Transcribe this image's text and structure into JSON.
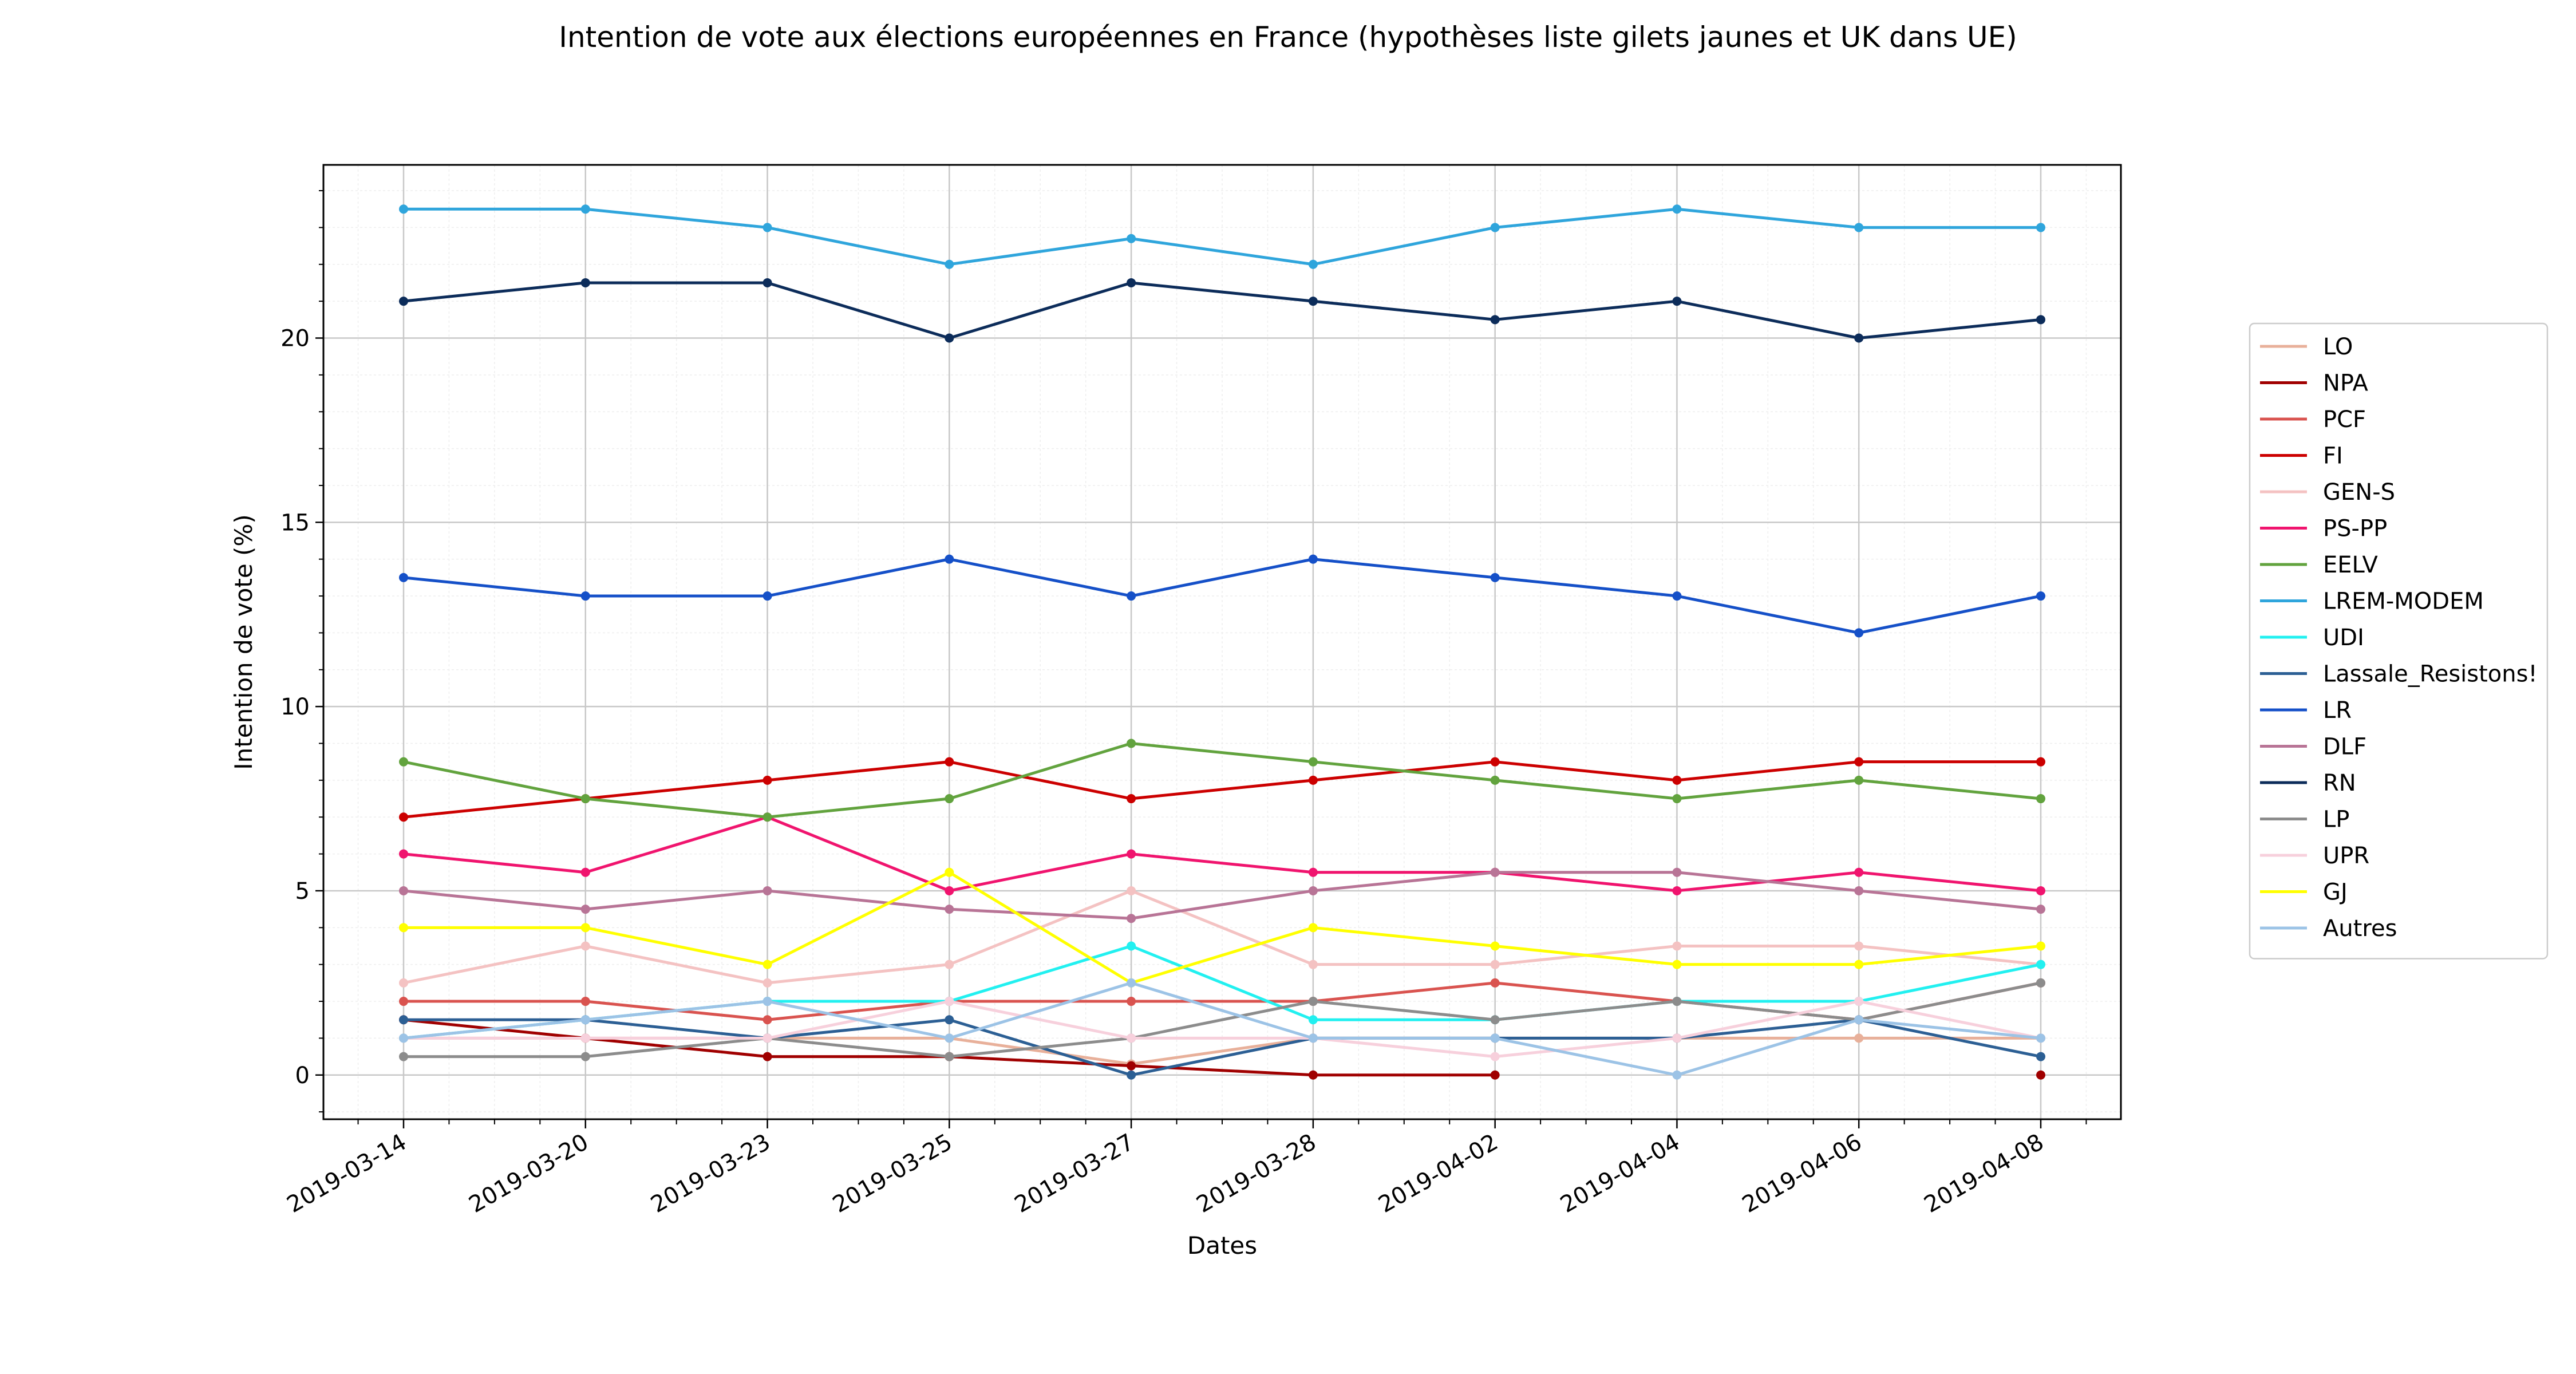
{
  "chart_data": {
    "type": "line",
    "title": "Intention de vote aux élections européennes en France (hypothèses liste gilets jaunes et UK dans UE)",
    "xlabel": "Dates",
    "ylabel": "Intention de vote (%)",
    "x": [
      "2019-03-14",
      "2019-03-20",
      "2019-03-23",
      "2019-03-25",
      "2019-03-27",
      "2019-03-28",
      "2019-04-02",
      "2019-04-04",
      "2019-04-06",
      "2019-04-08"
    ],
    "yticks": [
      0,
      5,
      10,
      15,
      20
    ],
    "ylim": [
      -1.2,
      24.7
    ],
    "grid": true,
    "legend_position": "right",
    "series": [
      {
        "name": "LO",
        "color": "#e8b09a",
        "values": [
          1,
          1,
          1,
          1,
          0.3,
          1,
          1,
          1,
          1,
          1
        ]
      },
      {
        "name": "NPA",
        "color": "#a00000",
        "values": [
          1.5,
          1,
          0.5,
          0.5,
          0.25,
          0,
          0,
          null,
          null,
          0
        ]
      },
      {
        "name": "PCF",
        "color": "#d9534f",
        "values": [
          2,
          2,
          1.5,
          2,
          2,
          2,
          2.5,
          2,
          1.5,
          2.5
        ]
      },
      {
        "name": "FI",
        "color": "#cc0000",
        "values": [
          7,
          7.5,
          8,
          8.5,
          7.5,
          8,
          8.5,
          8,
          8.5,
          8.5
        ]
      },
      {
        "name": "GEN-S",
        "color": "#f4c2c2",
        "values": [
          2.5,
          3.5,
          2.5,
          3,
          5,
          3,
          3,
          3.5,
          3.5,
          3
        ]
      },
      {
        "name": "PS-PP",
        "color": "#f0146e",
        "values": [
          6,
          5.5,
          7,
          5,
          6,
          5.5,
          5.5,
          5,
          5.5,
          5
        ]
      },
      {
        "name": "EELV",
        "color": "#62a33e",
        "values": [
          8.5,
          7.5,
          7,
          7.5,
          9,
          8.5,
          8,
          7.5,
          8,
          7.5
        ]
      },
      {
        "name": "LREM-MODEM",
        "color": "#2fa5dc",
        "values": [
          23.5,
          23.5,
          23,
          22,
          22.7,
          22,
          23,
          23.5,
          23,
          23
        ]
      },
      {
        "name": "UDI",
        "color": "#22f0f0",
        "values": [
          1,
          1.5,
          2,
          2,
          3.5,
          1.5,
          1.5,
          2,
          2,
          3
        ]
      },
      {
        "name": "Lassale_Resistons!",
        "color": "#2c5f94",
        "values": [
          1.5,
          1.5,
          1,
          1.5,
          0,
          1,
          1,
          1,
          1.5,
          0.5
        ]
      },
      {
        "name": "LR",
        "color": "#1550c8",
        "values": [
          13.5,
          13,
          13,
          14,
          13,
          14,
          13.5,
          13,
          12,
          13
        ]
      },
      {
        "name": "DLF",
        "color": "#b87496",
        "values": [
          5,
          4.5,
          5,
          4.5,
          4.25,
          5,
          5.5,
          5.5,
          5,
          4.5
        ]
      },
      {
        "name": "RN",
        "color": "#0c2c5a",
        "values": [
          21,
          21.5,
          21.5,
          20,
          21.5,
          21,
          20.5,
          21,
          20,
          20.5
        ]
      },
      {
        "name": "LP",
        "color": "#8c8c8c",
        "values": [
          0.5,
          0.5,
          1,
          0.5,
          1,
          2,
          1.5,
          2,
          1.5,
          2.5
        ]
      },
      {
        "name": "UPR",
        "color": "#f7d0dc",
        "values": [
          1,
          1,
          1,
          2,
          1,
          1,
          0.5,
          1,
          2,
          1
        ]
      },
      {
        "name": "GJ",
        "color": "#ffff00",
        "values": [
          4,
          4,
          3,
          5.5,
          2.5,
          4,
          3.5,
          3,
          3,
          3.5
        ]
      },
      {
        "name": "Autres",
        "color": "#9cc3e6",
        "values": [
          1,
          1.5,
          2,
          1,
          2.5,
          1,
          1,
          0,
          1.5,
          1
        ]
      }
    ]
  }
}
